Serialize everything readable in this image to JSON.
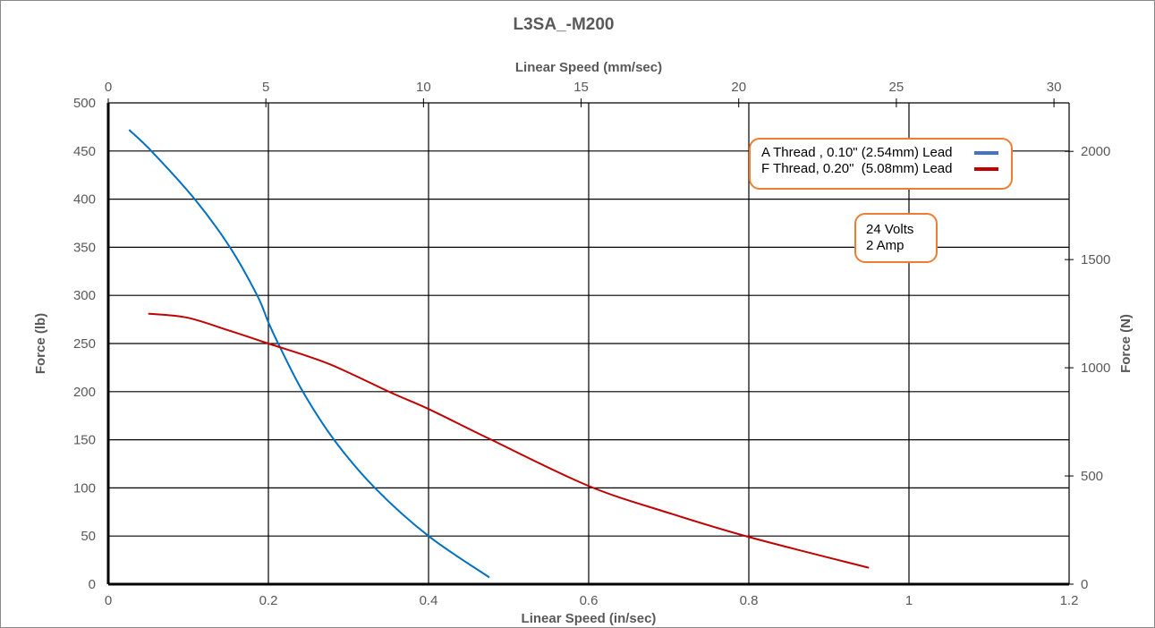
{
  "chart_data": {
    "type": "line",
    "title": "L3SA_-M200",
    "xlabel": "Linear Speed (in/sec)",
    "x2label": "Linear Speed (mm/sec)",
    "ylabel": "Force (lb)",
    "y2label": "Force (N)",
    "xlim": [
      0,
      1.2
    ],
    "x2lim": [
      0,
      30
    ],
    "ylim": [
      0,
      500
    ],
    "grid": true,
    "xticks": [
      "0",
      "0.2",
      "0.4",
      "0.6",
      "0.8",
      "1",
      "1.2"
    ],
    "x2ticks": [
      "0",
      "5",
      "10",
      "15",
      "20",
      "25",
      "30"
    ],
    "yticks": [
      "0",
      "50",
      "100",
      "150",
      "200",
      "250",
      "300",
      "350",
      "400",
      "450",
      "500"
    ],
    "y2ticks": [
      "0",
      "500",
      "1000",
      "1500",
      "2000"
    ],
    "legend_position": "top-right",
    "series": [
      {
        "name": "A Thread , 0.10\" (2.54mm) Lead",
        "color": "#0070C0",
        "x": [
          0.026,
          0.055,
          0.108,
          0.152,
          0.186,
          0.2,
          0.214,
          0.243,
          0.282,
          0.333,
          0.4,
          0.476
        ],
        "y": [
          472,
          449,
          400,
          350,
          300,
          272,
          247,
          200,
          150,
          100,
          50,
          7
        ]
      },
      {
        "name": "F Thread, 0.20\"  (5.08mm) Lead",
        "color": "#C00000",
        "x": [
          0.05,
          0.098,
          0.149,
          0.2,
          0.275,
          0.353,
          0.4,
          0.476,
          0.6,
          0.7,
          0.8,
          0.95
        ],
        "y": [
          281,
          277,
          264,
          250,
          229,
          199,
          182,
          151,
          102,
          74,
          49,
          17
        ]
      }
    ],
    "annotation": [
      "24 Volts",
      "2 Amp"
    ]
  },
  "colors": {
    "legend_a": "#4472C4",
    "legend_b": "#C00000",
    "box_border": "#ED7D31"
  }
}
